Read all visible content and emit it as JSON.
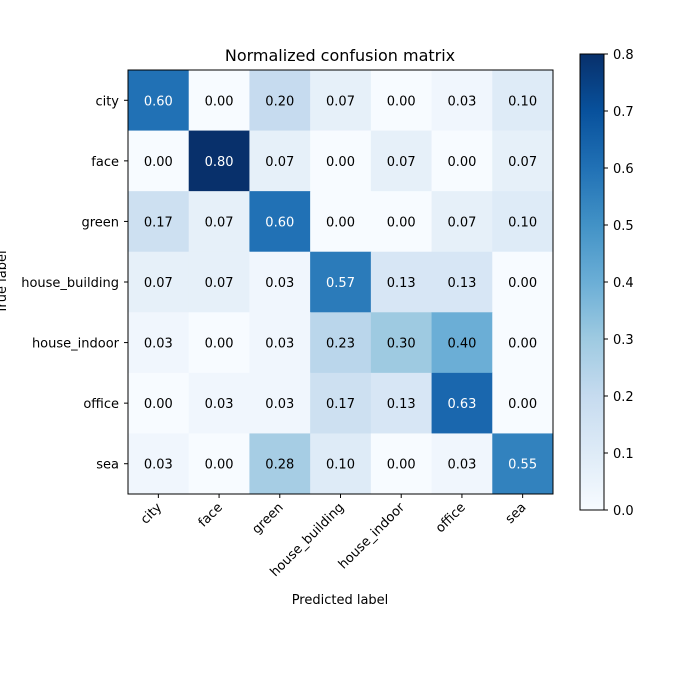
{
  "chart_data": {
    "type": "heatmap",
    "title": "Normalized confusion matrix",
    "xlabel": "Predicted label",
    "ylabel": "True label",
    "x_categories": [
      "city",
      "face",
      "green",
      "house_building",
      "house_indoor",
      "office",
      "sea"
    ],
    "y_categories": [
      "city",
      "face",
      "green",
      "house_building",
      "house_indoor",
      "office",
      "sea"
    ],
    "values": [
      [
        0.6,
        0.0,
        0.2,
        0.07,
        0.0,
        0.03,
        0.1
      ],
      [
        0.0,
        0.8,
        0.07,
        0.0,
        0.07,
        0.0,
        0.07
      ],
      [
        0.17,
        0.07,
        0.6,
        0.0,
        0.0,
        0.07,
        0.1
      ],
      [
        0.07,
        0.07,
        0.03,
        0.57,
        0.13,
        0.13,
        0.0
      ],
      [
        0.03,
        0.0,
        0.03,
        0.23,
        0.3,
        0.4,
        0.0
      ],
      [
        0.0,
        0.03,
        0.03,
        0.17,
        0.13,
        0.63,
        0.0
      ],
      [
        0.03,
        0.0,
        0.28,
        0.1,
        0.0,
        0.03,
        0.55
      ]
    ],
    "colormap": "Blues",
    "vmin": 0.0,
    "vmax": 0.8,
    "colorbar_ticks": [
      "0.0",
      "0.1",
      "0.2",
      "0.3",
      "0.4",
      "0.5",
      "0.6",
      "0.7",
      "0.8"
    ],
    "value_format": "2 decimals"
  }
}
